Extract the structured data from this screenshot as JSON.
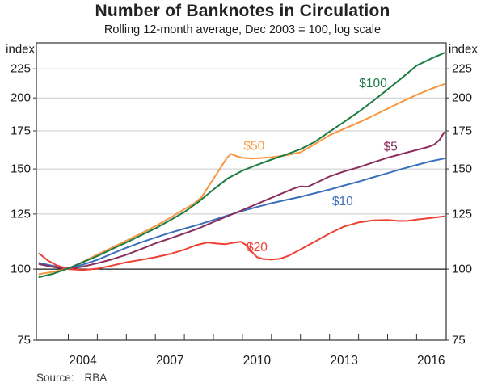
{
  "title": "Number of Banknotes in Circulation",
  "subtitle": "Rolling 12-month average, Dec 2003 = 100, log scale",
  "axis_units": {
    "left": "index",
    "right": "index"
  },
  "source": {
    "label": "Source:",
    "value": "RBA"
  },
  "colors": {
    "grid": "#cbcbcb",
    "frame": "#333333",
    "reference_line": "#1a1a1a",
    "tick_text": "#1a1a1a",
    "source_text": "#3a3a3a"
  },
  "chart_data": {
    "type": "line",
    "title": "Number of Banknotes in Circulation",
    "subtitle": "Rolling 12-month average, Dec 2003 = 100, log scale",
    "ylabel": "index",
    "y_scale": "log",
    "xlim": [
      2002.9,
      2017.02
    ],
    "ylim": [
      75,
      250
    ],
    "y_tick_labels": [
      75,
      100,
      125,
      150,
      175,
      200,
      225
    ],
    "gridline_values": [
      125,
      150,
      175,
      200,
      225
    ],
    "reference_line": 100,
    "x_tick_years": [
      2004,
      2005,
      2006,
      2007,
      2008,
      2009,
      2010,
      2011,
      2012,
      2013,
      2014,
      2015,
      2016
    ],
    "x_axis_labels": [
      2004,
      2007,
      2010,
      2013,
      2016
    ],
    "legend_position": "inline-labels",
    "grid": true,
    "series": [
      {
        "name": "$10",
        "color": "#3a6fba",
        "label": {
          "x": 2013.45,
          "y": 131.5
        },
        "points": [
          [
            2003.0,
            102.5
          ],
          [
            2003.5,
            101.2
          ],
          [
            2004.0,
            100.4
          ],
          [
            2004.5,
            101.8
          ],
          [
            2005.0,
            103.8
          ],
          [
            2005.5,
            106.4
          ],
          [
            2006.0,
            109.0
          ],
          [
            2006.5,
            111.4
          ],
          [
            2007.0,
            113.6
          ],
          [
            2007.5,
            115.8
          ],
          [
            2008.0,
            117.8
          ],
          [
            2008.5,
            119.8
          ],
          [
            2009.0,
            122.0
          ],
          [
            2009.5,
            124.3
          ],
          [
            2010.0,
            126.6
          ],
          [
            2010.5,
            128.6
          ],
          [
            2011.0,
            130.6
          ],
          [
            2011.5,
            132.3
          ],
          [
            2012.0,
            134.0
          ],
          [
            2012.5,
            136.0
          ],
          [
            2013.0,
            138.0
          ],
          [
            2013.5,
            140.3
          ],
          [
            2014.0,
            142.5
          ],
          [
            2014.5,
            145.0
          ],
          [
            2015.0,
            147.5
          ],
          [
            2015.5,
            150.0
          ],
          [
            2016.0,
            152.5
          ],
          [
            2016.5,
            154.8
          ],
          [
            2016.95,
            156.5
          ]
        ]
      },
      {
        "name": "$5",
        "color": "#8b2e5d",
        "label": {
          "x": 2015.1,
          "y": 164
        },
        "points": [
          [
            2003.0,
            102.0
          ],
          [
            2003.5,
            100.8
          ],
          [
            2004.0,
            100.0
          ],
          [
            2004.5,
            101.0
          ],
          [
            2005.0,
            102.4
          ],
          [
            2005.5,
            104.0
          ],
          [
            2006.0,
            106.0
          ],
          [
            2006.5,
            108.4
          ],
          [
            2007.0,
            111.0
          ],
          [
            2007.5,
            113.2
          ],
          [
            2008.0,
            115.5
          ],
          [
            2008.5,
            118.0
          ],
          [
            2009.0,
            121.0
          ],
          [
            2009.5,
            124.0
          ],
          [
            2010.0,
            127.0
          ],
          [
            2010.5,
            130.2
          ],
          [
            2011.0,
            133.5
          ],
          [
            2011.5,
            136.8
          ],
          [
            2011.8,
            138.8
          ],
          [
            2012.0,
            139.8
          ],
          [
            2012.25,
            139.6
          ],
          [
            2012.5,
            141.5
          ],
          [
            2013.0,
            145.5
          ],
          [
            2013.5,
            148.5
          ],
          [
            2014.0,
            151.0
          ],
          [
            2014.5,
            154.0
          ],
          [
            2015.0,
            157.0
          ],
          [
            2015.5,
            159.5
          ],
          [
            2016.0,
            162.0
          ],
          [
            2016.4,
            164.0
          ],
          [
            2016.6,
            165.5
          ],
          [
            2016.8,
            169.0
          ],
          [
            2016.95,
            174.0
          ]
        ]
      },
      {
        "name": "$20",
        "color": "#ee4135",
        "label": {
          "x": 2010.5,
          "y": 109
        },
        "points": [
          [
            2003.0,
            106.5
          ],
          [
            2003.3,
            103.5
          ],
          [
            2003.6,
            101.5
          ],
          [
            2004.0,
            100.0
          ],
          [
            2004.5,
            99.6
          ],
          [
            2005.0,
            100.2
          ],
          [
            2005.5,
            101.4
          ],
          [
            2006.0,
            102.8
          ],
          [
            2006.5,
            103.8
          ],
          [
            2007.0,
            104.9
          ],
          [
            2007.5,
            106.3
          ],
          [
            2008.0,
            108.2
          ],
          [
            2008.4,
            110.2
          ],
          [
            2008.8,
            111.4
          ],
          [
            2009.1,
            110.9
          ],
          [
            2009.4,
            110.6
          ],
          [
            2009.7,
            111.3
          ],
          [
            2009.95,
            111.7
          ],
          [
            2010.1,
            110.5
          ],
          [
            2010.3,
            107.5
          ],
          [
            2010.5,
            105.0
          ],
          [
            2010.7,
            104.2
          ],
          [
            2011.0,
            103.9
          ],
          [
            2011.3,
            104.3
          ],
          [
            2011.6,
            105.6
          ],
          [
            2012.0,
            108.3
          ],
          [
            2012.5,
            111.8
          ],
          [
            2013.0,
            115.5
          ],
          [
            2013.5,
            118.8
          ],
          [
            2014.0,
            120.8
          ],
          [
            2014.5,
            121.8
          ],
          [
            2015.0,
            122.0
          ],
          [
            2015.4,
            121.5
          ],
          [
            2015.7,
            121.6
          ],
          [
            2016.0,
            122.2
          ],
          [
            2016.5,
            123.0
          ],
          [
            2016.95,
            123.8
          ]
        ]
      },
      {
        "name": "$50",
        "color": "#f8963f",
        "label": {
          "x": 2010.4,
          "y": 164.5
        },
        "points": [
          [
            2003.0,
            98.0
          ],
          [
            2003.5,
            98.9
          ],
          [
            2004.0,
            100.2
          ],
          [
            2004.5,
            103.0
          ],
          [
            2005.0,
            106.0
          ],
          [
            2005.5,
            109.0
          ],
          [
            2006.0,
            112.2
          ],
          [
            2006.5,
            115.5
          ],
          [
            2007.0,
            119.0
          ],
          [
            2007.5,
            123.0
          ],
          [
            2008.0,
            127.5
          ],
          [
            2008.3,
            130.0
          ],
          [
            2008.6,
            134.0
          ],
          [
            2008.9,
            141.5
          ],
          [
            2009.2,
            149.5
          ],
          [
            2009.45,
            156.5
          ],
          [
            2009.6,
            159.5
          ],
          [
            2009.8,
            158.0
          ],
          [
            2010.0,
            157.0
          ],
          [
            2010.3,
            156.5
          ],
          [
            2010.6,
            156.8
          ],
          [
            2011.0,
            157.3
          ],
          [
            2011.5,
            158.5
          ],
          [
            2012.0,
            160.5
          ],
          [
            2012.5,
            166.0
          ],
          [
            2013.0,
            172.0
          ],
          [
            2013.5,
            176.5
          ],
          [
            2014.0,
            181.0
          ],
          [
            2014.5,
            186.0
          ],
          [
            2015.0,
            191.5
          ],
          [
            2015.5,
            197.0
          ],
          [
            2016.0,
            202.5
          ],
          [
            2016.5,
            207.5
          ],
          [
            2016.95,
            211.5
          ]
        ]
      },
      {
        "name": "$100",
        "color": "#1c7c44",
        "label": {
          "x": 2014.5,
          "y": 212
        },
        "points": [
          [
            2003.0,
            96.8
          ],
          [
            2003.5,
            98.2
          ],
          [
            2004.0,
            100.3
          ],
          [
            2004.5,
            102.8
          ],
          [
            2005.0,
            105.4
          ],
          [
            2005.5,
            108.4
          ],
          [
            2006.0,
            111.4
          ],
          [
            2006.5,
            114.6
          ],
          [
            2007.0,
            117.9
          ],
          [
            2007.5,
            121.8
          ],
          [
            2008.0,
            126.0
          ],
          [
            2008.5,
            131.5
          ],
          [
            2009.0,
            138.0
          ],
          [
            2009.5,
            144.5
          ],
          [
            2010.0,
            149.0
          ],
          [
            2010.5,
            152.5
          ],
          [
            2011.0,
            155.8
          ],
          [
            2011.5,
            159.0
          ],
          [
            2012.0,
            162.5
          ],
          [
            2012.5,
            167.5
          ],
          [
            2013.0,
            174.5
          ],
          [
            2013.5,
            181.5
          ],
          [
            2014.0,
            189.0
          ],
          [
            2014.5,
            197.5
          ],
          [
            2015.0,
            207.0
          ],
          [
            2015.5,
            217.0
          ],
          [
            2016.0,
            228.0
          ],
          [
            2016.5,
            234.5
          ],
          [
            2016.95,
            240.0
          ]
        ]
      }
    ]
  }
}
